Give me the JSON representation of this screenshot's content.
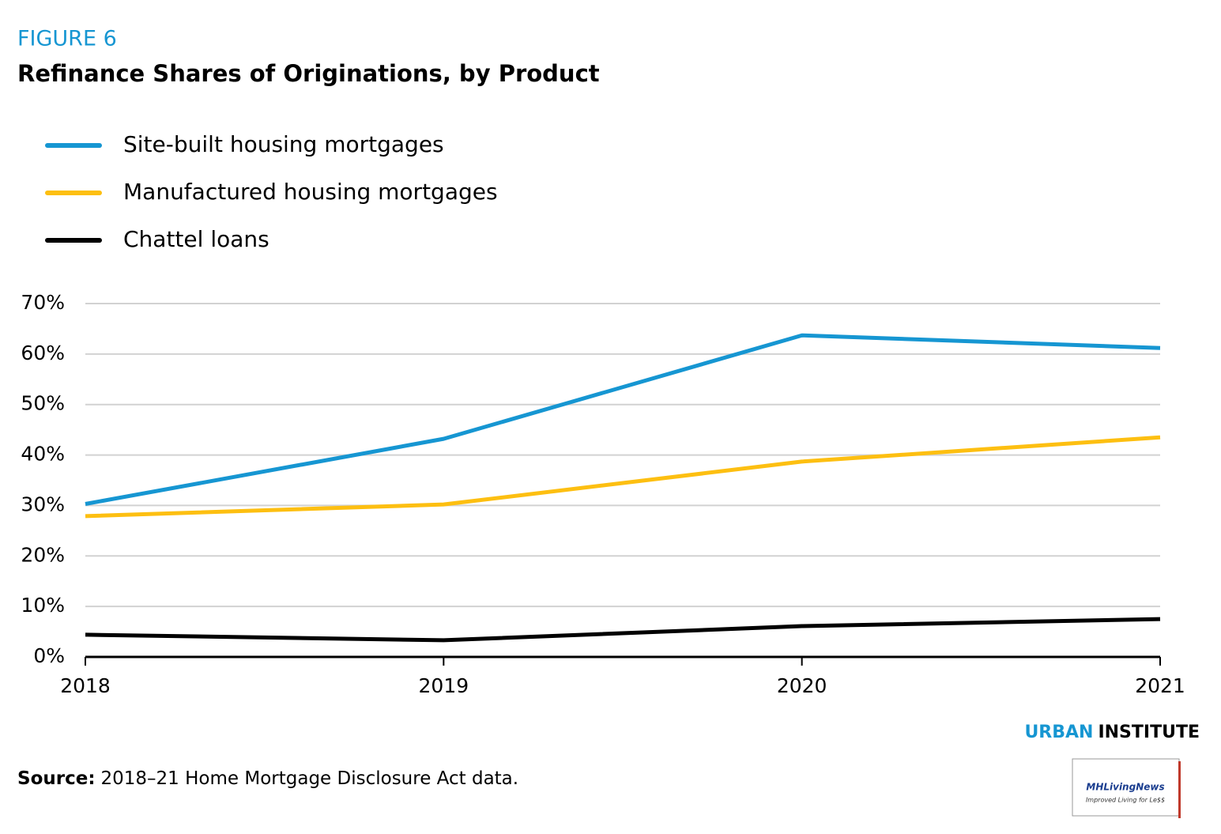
{
  "figure_label": "FIGURE 6",
  "chart_data": {
    "type": "line",
    "title": "Refinance Shares of Originations, by Product",
    "categories": [
      "2018",
      "2019",
      "2020",
      "2021"
    ],
    "series": [
      {
        "name": "Site-built housing mortgages",
        "color": "#1696d2",
        "values": [
          30.3,
          43.2,
          63.7,
          61.2
        ]
      },
      {
        "name": "Manufactured housing mortgages",
        "color": "#fdbf11",
        "values": [
          27.9,
          30.2,
          38.7,
          43.5
        ]
      },
      {
        "name": "Chattel loans",
        "color": "#000000",
        "values": [
          4.4,
          3.3,
          6.1,
          7.5
        ]
      }
    ],
    "ylim": [
      0,
      70
    ],
    "yticks": [
      {
        "value": 0,
        "label": "0%"
      },
      {
        "value": 10,
        "label": "10%"
      },
      {
        "value": 20,
        "label": "20%"
      },
      {
        "value": 30,
        "label": "30%"
      },
      {
        "value": 40,
        "label": "40%"
      },
      {
        "value": 50,
        "label": "50%"
      },
      {
        "value": 60,
        "label": "60%"
      },
      {
        "value": 70,
        "label": "70%"
      }
    ],
    "grid": true,
    "legend": "top-left"
  },
  "branding": {
    "first": "URBAN",
    "second": "INSTITUTE"
  },
  "source": {
    "label": "Source:",
    "text": "2018–21 Home Mortgage Disclosure Act data."
  },
  "watermark": {
    "name": "MHLivingNews",
    "tagline": "Improved Living for Le$$"
  }
}
